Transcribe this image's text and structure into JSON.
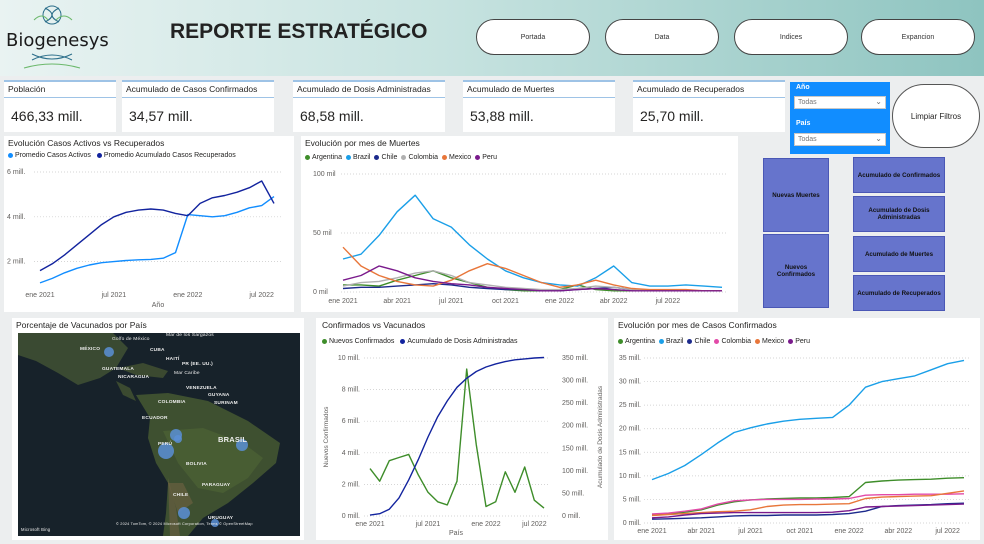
{
  "header": {
    "logo_text": "Biogenesys",
    "title": "REPORTE ESTRATÉGICO",
    "nav": [
      "Portada",
      "Data",
      "Indices",
      "Expancion"
    ]
  },
  "kpis": [
    {
      "label": "Población",
      "value": "466,33 mill."
    },
    {
      "label": "Acumulado de Casos Confirmados",
      "value": "34,57 mill."
    },
    {
      "label": "Acumulado de Dosis Administradas",
      "value": "68,58 mill."
    },
    {
      "label": "Acumulado de Muertes",
      "value": "53,88 mill."
    },
    {
      "label": "Acumulado de Recuperados",
      "value": "25,70 mill."
    }
  ],
  "slicers": {
    "year_label": "Año",
    "year_value": "Todas",
    "country_label": "País",
    "country_value": "Todas",
    "clear_label": "Limpiar Filtros"
  },
  "bookmarks": {
    "left": [
      "Nuevas Muertes",
      "Nuevos Confirmados"
    ],
    "right": [
      "Acumulado de Confirmados",
      "Acumulado de Dosis Administradas",
      "Acumulado de Muertes",
      "Acumulado de Recuperados"
    ]
  },
  "colors": {
    "blue": "#118dff",
    "navy": "#12239e",
    "argentina": "#3e8d2a",
    "brazil": "#1a9fe8",
    "chile": "#1c2a8c",
    "colombia": "#b0b0b0",
    "mexico": "#e8763a",
    "peru": "#7a1a8c",
    "colombia_pink": "#e24aa8"
  },
  "map": {
    "title": "Porcentaje de Vacunados por País",
    "labels": [
      "MÉXICO",
      "Golfo de México",
      "Mar de los Sargazos",
      "CUBA",
      "HAITÍ",
      "PR (EE. UU.)",
      "GUATEMALA",
      "NICARAGUA",
      "Mar Caribe",
      "VENEZUELA",
      "GUYANA",
      "SURINAM",
      "COLOMBIA",
      "ECUADOR",
      "PERÚ",
      "BRASIL",
      "BOLIVIA",
      "PARAGUAY",
      "CHILE",
      "URUGUAY"
    ],
    "attribution_left": "Microsoft Bing",
    "attribution_right": "© 2024 TomTom, © 2024 Microsoft Corporation, Terms © OpenStreetMap"
  },
  "chart_data": [
    {
      "id": "activos",
      "type": "line",
      "title": "Evolución Casos Activos vs Recuperados",
      "xlabel": "Año",
      "x_ticks": [
        "ene 2021",
        "jul 2021",
        "ene 2022",
        "jul 2022"
      ],
      "y_ticks": [
        "2 mill.",
        "4 mill.",
        "6 mill."
      ],
      "ylim": [
        1,
        6
      ],
      "series": [
        {
          "name": "Promedio Casos Activos",
          "color": "#118dff",
          "values": [
            1.05,
            1.25,
            1.5,
            1.7,
            1.85,
            1.95,
            2.0,
            2.05,
            2.08,
            2.1,
            2.15,
            2.4,
            4.1,
            4.05,
            4.0,
            4.05,
            4.2,
            4.4,
            4.5,
            4.9
          ]
        },
        {
          "name": "Promedio Acumulado Casos Recuperados",
          "color": "#12239e",
          "values": [
            1.6,
            1.9,
            2.3,
            2.75,
            3.2,
            3.65,
            4.0,
            4.2,
            4.3,
            4.35,
            4.3,
            4.15,
            4.05,
            4.6,
            4.85,
            4.95,
            5.1,
            5.3,
            5.6,
            4.6
          ]
        }
      ]
    },
    {
      "id": "muertes",
      "type": "line",
      "title": "Evolución por mes de Muertes",
      "x_ticks": [
        "ene 2021",
        "abr 2021",
        "jul 2021",
        "oct 2021",
        "ene 2022",
        "abr 2022",
        "jul 2022"
      ],
      "y_ticks": [
        "0 mil",
        "50 mil",
        "100 mil"
      ],
      "ylim": [
        0,
        100
      ],
      "series": [
        {
          "name": "Argentina",
          "color": "#3e8d2a",
          "values": [
            6,
            6,
            5,
            10,
            14,
            18,
            12,
            8,
            4,
            2,
            1,
            1,
            2,
            6,
            2,
            1,
            1,
            1,
            1,
            1,
            1,
            1
          ]
        },
        {
          "name": "Brazil",
          "color": "#1a9fe8",
          "values": [
            28,
            32,
            48,
            68,
            82,
            62,
            55,
            40,
            28,
            18,
            12,
            8,
            6,
            5,
            12,
            22,
            8,
            5,
            5,
            6,
            5,
            4
          ]
        },
        {
          "name": "Chile",
          "color": "#1c2a8c",
          "values": [
            3,
            4,
            4,
            5,
            6,
            7,
            6,
            4,
            3,
            2,
            2,
            1,
            1,
            2,
            3,
            4,
            2,
            1,
            1,
            1,
            1,
            1
          ]
        },
        {
          "name": "Colombia",
          "color": "#b0b0b0",
          "values": [
            5,
            8,
            9,
            12,
            16,
            18,
            14,
            8,
            6,
            4,
            3,
            2,
            2,
            3,
            5,
            4,
            2,
            1,
            1,
            1,
            1,
            1
          ]
        },
        {
          "name": "Mexico",
          "color": "#e8763a",
          "values": [
            38,
            22,
            14,
            9,
            6,
            5,
            10,
            18,
            24,
            20,
            14,
            8,
            4,
            6,
            10,
            6,
            3,
            2,
            2,
            2,
            1,
            1
          ]
        },
        {
          "name": "Peru",
          "color": "#7a1a8c",
          "values": [
            10,
            14,
            22,
            18,
            12,
            9,
            7,
            6,
            4,
            3,
            2,
            1,
            1,
            2,
            3,
            2,
            1,
            1,
            1,
            1,
            1,
            1
          ]
        }
      ]
    },
    {
      "id": "confvac",
      "type": "line",
      "title": "Confirmados vs Vacunados",
      "xlabel": "País",
      "ylabel": "Nuevos Confirmados",
      "ylabel_right": "Acumulado de Dosis Administradas",
      "x_ticks": [
        "ene 2021",
        "jul 2021",
        "ene 2022",
        "jul 2022"
      ],
      "y_ticks": [
        "0 mill.",
        "2 mill.",
        "4 mill.",
        "6 mill.",
        "8 mill.",
        "10 mill."
      ],
      "y2_ticks": [
        "0 mill.",
        "50 mill.",
        "100 mill.",
        "150 mill.",
        "200 mill.",
        "250 mill.",
        "300 mill.",
        "350 mill."
      ],
      "ylim": [
        0,
        10
      ],
      "y2lim": [
        0,
        350
      ],
      "series": [
        {
          "name": "Nuevos Confirmados",
          "color": "#3e8d2a",
          "axis": "left",
          "values": [
            3.0,
            2.2,
            3.5,
            3.7,
            3.9,
            2.6,
            1.5,
            0.9,
            0.7,
            2.2,
            9.3,
            4.5,
            0.6,
            0.9,
            2.8,
            1.5,
            3.1,
            1.0,
            0.5
          ]
        },
        {
          "name": "Acumulado de Dosis Administradas",
          "color": "#12239e",
          "axis": "right",
          "values": [
            2,
            5,
            15,
            40,
            80,
            125,
            175,
            220,
            255,
            285,
            305,
            320,
            330,
            337,
            342,
            346,
            348,
            350,
            351
          ]
        }
      ]
    },
    {
      "id": "casos",
      "type": "line",
      "title": "Evolución por mes de Casos Confirmados",
      "x_ticks": [
        "ene 2021",
        "abr 2021",
        "jul 2021",
        "oct 2021",
        "ene 2022",
        "abr 2022",
        "jul 2022"
      ],
      "y_ticks": [
        "0 mill.",
        "5 mill.",
        "10 mill.",
        "15 mill.",
        "20 mill.",
        "25 mill.",
        "30 mill.",
        "35 mill."
      ],
      "ylim": [
        0,
        35
      ],
      "series": [
        {
          "name": "Argentina",
          "color": "#3e8d2a",
          "values": [
            1.8,
            2.0,
            2.3,
            2.8,
            3.8,
            4.5,
            4.9,
            5.1,
            5.2,
            5.3,
            5.3,
            5.4,
            5.6,
            8.6,
            8.9,
            9.1,
            9.2,
            9.3,
            9.5,
            9.6
          ]
        },
        {
          "name": "Brazil",
          "color": "#1a9fe8",
          "values": [
            9.2,
            10.5,
            12.2,
            14.5,
            17.0,
            19.2,
            20.2,
            21.0,
            21.6,
            22.0,
            22.2,
            22.4,
            25.0,
            28.8,
            30.0,
            30.6,
            31.2,
            32.5,
            33.8,
            34.5
          ]
        },
        {
          "name": "Chile",
          "color": "#1c2a8c",
          "values": [
            0.8,
            0.9,
            1.0,
            1.1,
            1.3,
            1.5,
            1.6,
            1.6,
            1.7,
            1.7,
            1.7,
            1.8,
            2.0,
            2.5,
            3.5,
            3.7,
            3.8,
            3.9,
            4.1,
            4.2
          ]
        },
        {
          "name": "Colombia",
          "color": "#e24aa8",
          "values": [
            1.9,
            2.1,
            2.5,
            3.0,
            4.0,
            4.7,
            4.9,
            5.0,
            5.0,
            5.0,
            5.1,
            5.1,
            5.2,
            5.9,
            6.0,
            6.0,
            6.1,
            6.1,
            6.1,
            6.2
          ]
        },
        {
          "name": "Mexico",
          "color": "#e8763a",
          "values": [
            1.6,
            1.8,
            2.0,
            2.2,
            2.4,
            2.5,
            2.8,
            3.5,
            3.8,
            3.9,
            3.9,
            4.0,
            4.1,
            5.2,
            5.5,
            5.6,
            5.7,
            5.8,
            6.3,
            6.8
          ]
        },
        {
          "name": "Peru",
          "color": "#7a1a8c",
          "values": [
            1.1,
            1.3,
            1.7,
            2.0,
            2.1,
            2.2,
            2.2,
            2.2,
            2.2,
            2.2,
            2.2,
            2.3,
            2.6,
            3.4,
            3.5,
            3.6,
            3.7,
            3.8,
            3.9,
            4.0
          ]
        }
      ]
    }
  ]
}
